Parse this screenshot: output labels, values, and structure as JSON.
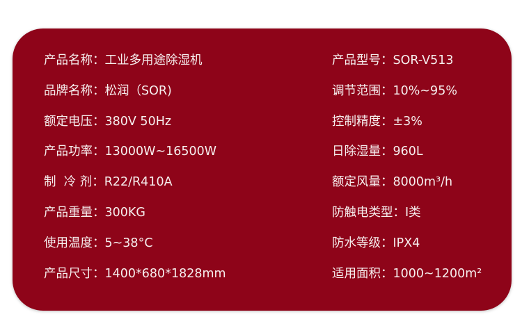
{
  "card_color": "#8e0419",
  "left": [
    {
      "label": "产品名称：",
      "value": "工业多用途除湿机"
    },
    {
      "label": "品牌名称：",
      "value": "松润（SOR)"
    },
    {
      "label": "额定电压：",
      "value": "380V 50Hz"
    },
    {
      "label": "产品功率：",
      "value": "13000W~16500W"
    },
    {
      "label": "制  冷 剂：",
      "value": "R22/R410A"
    },
    {
      "label": "产品重量：",
      "value": "300KG"
    },
    {
      "label": "使用温度：",
      "value": "5~38°C"
    },
    {
      "label": "产品尺寸：",
      "value": "1400*680*1828mm"
    }
  ],
  "right": [
    {
      "label": "产品型号：",
      "value": "SOR-V513"
    },
    {
      "label": "调节范围：",
      "value": "10%~95%"
    },
    {
      "label": "控制精度：",
      "value": "±3%"
    },
    {
      "label": "日除湿量：",
      "value": "960L"
    },
    {
      "label": "额定风量：",
      "value": "8000m³/h"
    },
    {
      "label": "防触电类型：",
      "value": "I类"
    },
    {
      "label": "防水等级：",
      "value": "IPX4"
    },
    {
      "label": "适用面积：",
      "value": "1000~1200m²"
    }
  ]
}
